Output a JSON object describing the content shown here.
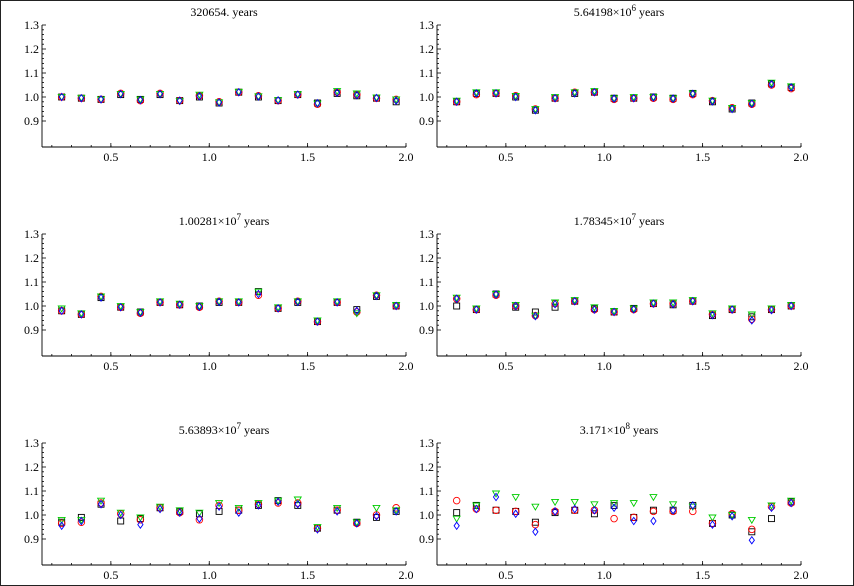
{
  "chart_data": [
    {
      "type": "scatter",
      "title": {
        "mantissa": "320654.",
        "exponent": "",
        "unit": "years"
      },
      "xlim": [
        0.15,
        2.0
      ],
      "ylim": [
        0.8,
        1.3
      ],
      "x_ticks": [
        "0.5",
        "1.0",
        "1.5",
        "2.0"
      ],
      "y_ticks": [
        "0.9",
        "1.0",
        "1.1",
        "1.2",
        "1.3"
      ],
      "x": [
        0.25,
        0.35,
        0.45,
        0.55,
        0.65,
        0.75,
        0.85,
        0.95,
        1.05,
        1.15,
        1.25,
        1.35,
        1.45,
        1.55,
        1.65,
        1.75,
        1.85,
        1.95
      ],
      "series": [
        {
          "marker": "square",
          "color": "#000000",
          "values": [
            1.0,
            0.995,
            0.99,
            1.01,
            0.99,
            1.01,
            0.985,
            1.0,
            0.975,
            1.02,
            1.0,
            0.985,
            1.01,
            0.975,
            1.015,
            1.005,
            0.995,
            0.98
          ]
        },
        {
          "marker": "circle",
          "color": "#ff0000",
          "values": [
            1.0,
            0.995,
            0.99,
            1.015,
            0.985,
            1.015,
            0.985,
            1.005,
            0.98,
            1.02,
            1.005,
            0.985,
            1.01,
            0.97,
            1.02,
            1.01,
            0.995,
            0.99
          ]
        },
        {
          "marker": "triangle-down",
          "color": "#00cc00",
          "values": [
            1.0,
            0.997,
            0.99,
            1.013,
            0.99,
            1.013,
            0.983,
            1.01,
            0.978,
            1.022,
            1.003,
            0.987,
            1.012,
            0.973,
            1.025,
            1.015,
            0.998,
            0.99
          ]
        },
        {
          "marker": "diamond",
          "color": "#0000ff",
          "values": [
            1.0,
            0.995,
            0.99,
            1.012,
            0.987,
            1.012,
            0.985,
            1.003,
            0.977,
            1.02,
            1.002,
            0.986,
            1.01,
            0.974,
            1.018,
            1.008,
            0.996,
            0.985
          ]
        }
      ]
    },
    {
      "type": "scatter",
      "title": {
        "mantissa": "5.64198",
        "exponent": "6",
        "unit": "years"
      },
      "xlim": [
        0.15,
        2.0
      ],
      "ylim": [
        0.8,
        1.3
      ],
      "x_ticks": [
        "0.5",
        "1.0",
        "1.5",
        "2.0"
      ],
      "y_ticks": [
        "0.9",
        "1.0",
        "1.1",
        "1.2",
        "1.3"
      ],
      "x": [
        0.25,
        0.35,
        0.45,
        0.55,
        0.65,
        0.75,
        0.85,
        0.95,
        1.05,
        1.15,
        1.25,
        1.35,
        1.45,
        1.55,
        1.65,
        1.75,
        1.85,
        1.95
      ],
      "series": [
        {
          "marker": "square",
          "color": "#000000",
          "values": [
            0.98,
            1.015,
            1.015,
            1.0,
            0.945,
            0.995,
            1.015,
            1.02,
            0.995,
            0.995,
            1.0,
            0.995,
            1.015,
            0.98,
            0.95,
            0.975,
            1.055,
            1.04
          ]
        },
        {
          "marker": "circle",
          "color": "#ff0000",
          "values": [
            0.98,
            1.01,
            1.015,
            1.005,
            0.95,
            0.995,
            1.02,
            1.02,
            0.99,
            0.995,
            0.995,
            0.99,
            1.01,
            0.985,
            0.955,
            0.97,
            1.05,
            1.035
          ]
        },
        {
          "marker": "triangle-down",
          "color": "#00cc00",
          "values": [
            0.985,
            1.02,
            1.02,
            1.005,
            0.95,
            1.0,
            1.02,
            1.025,
            0.995,
            1.0,
            1.0,
            0.995,
            1.015,
            0.985,
            0.955,
            0.975,
            1.06,
            1.045
          ]
        },
        {
          "marker": "diamond",
          "color": "#0000ff",
          "values": [
            0.98,
            1.015,
            1.015,
            1.0,
            0.945,
            0.995,
            1.015,
            1.02,
            0.993,
            0.995,
            0.998,
            0.993,
            1.013,
            0.982,
            0.95,
            0.972,
            1.053,
            1.04
          ]
        }
      ]
    },
    {
      "type": "scatter",
      "title": {
        "mantissa": "1.00281",
        "exponent": "7",
        "unit": "years"
      },
      "xlim": [
        0.15,
        2.0
      ],
      "ylim": [
        0.8,
        1.3
      ],
      "x_ticks": [
        "0.5",
        "1.0",
        "1.5",
        "2.0"
      ],
      "y_ticks": [
        "0.9",
        "1.0",
        "1.1",
        "1.2",
        "1.3"
      ],
      "x": [
        0.25,
        0.35,
        0.45,
        0.55,
        0.65,
        0.75,
        0.85,
        0.95,
        1.05,
        1.15,
        1.25,
        1.35,
        1.45,
        1.55,
        1.65,
        1.75,
        1.85,
        1.95
      ],
      "series": [
        {
          "marker": "square",
          "color": "#000000",
          "values": [
            0.98,
            0.965,
            1.035,
            0.995,
            0.975,
            1.015,
            1.005,
            1.0,
            1.015,
            1.015,
            1.06,
            0.99,
            1.015,
            0.935,
            1.015,
            0.985,
            1.04,
            1.0
          ]
        },
        {
          "marker": "circle",
          "color": "#ff0000",
          "values": [
            0.98,
            0.965,
            1.04,
            0.995,
            0.97,
            1.015,
            1.005,
            0.995,
            1.02,
            1.015,
            1.045,
            0.99,
            1.02,
            0.935,
            1.015,
            0.975,
            1.045,
            1.0
          ]
        },
        {
          "marker": "triangle-down",
          "color": "#00cc00",
          "values": [
            0.99,
            0.97,
            1.04,
            1.0,
            0.975,
            1.02,
            1.01,
            1.0,
            1.02,
            1.02,
            1.06,
            0.995,
            1.02,
            0.94,
            1.02,
            0.97,
            1.045,
            1.005
          ]
        },
        {
          "marker": "diamond",
          "color": "#0000ff",
          "values": [
            0.98,
            0.965,
            1.035,
            0.995,
            0.972,
            1.015,
            1.005,
            0.997,
            1.017,
            1.015,
            1.05,
            0.99,
            1.017,
            0.935,
            1.015,
            0.98,
            1.042,
            1.0
          ]
        }
      ]
    },
    {
      "type": "scatter",
      "title": {
        "mantissa": "1.78345",
        "exponent": "7",
        "unit": "years"
      },
      "xlim": [
        0.15,
        2.0
      ],
      "ylim": [
        0.8,
        1.3
      ],
      "x_ticks": [
        "0.5",
        "1.0",
        "1.5",
        "2.0"
      ],
      "y_ticks": [
        "0.9",
        "1.0",
        "1.1",
        "1.2",
        "1.3"
      ],
      "x": [
        0.25,
        0.35,
        0.45,
        0.55,
        0.65,
        0.75,
        0.85,
        0.95,
        1.05,
        1.15,
        1.25,
        1.35,
        1.45,
        1.55,
        1.65,
        1.75,
        1.85,
        1.95
      ],
      "series": [
        {
          "marker": "square",
          "color": "#000000",
          "values": [
            1.0,
            0.985,
            1.05,
            0.995,
            0.975,
            0.995,
            1.02,
            0.99,
            0.975,
            0.99,
            1.01,
            1.005,
            1.02,
            0.96,
            0.985,
            0.955,
            0.985,
            1.0
          ]
        },
        {
          "marker": "circle",
          "color": "#ff0000",
          "values": [
            1.03,
            0.985,
            1.045,
            1.0,
            0.96,
            1.01,
            1.02,
            0.985,
            0.975,
            0.985,
            1.01,
            1.01,
            1.02,
            0.965,
            0.985,
            0.945,
            0.985,
            1.0
          ]
        },
        {
          "marker": "triangle-down",
          "color": "#00cc00",
          "values": [
            1.035,
            0.99,
            1.05,
            1.005,
            0.96,
            1.015,
            1.025,
            0.995,
            0.98,
            0.99,
            1.015,
            1.015,
            1.025,
            0.97,
            0.99,
            0.965,
            0.99,
            1.005
          ]
        },
        {
          "marker": "diamond",
          "color": "#0000ff",
          "values": [
            1.03,
            0.985,
            1.048,
            1.0,
            0.958,
            1.008,
            1.02,
            0.985,
            0.975,
            0.986,
            1.01,
            1.008,
            1.02,
            0.962,
            0.985,
            0.94,
            0.983,
            1.0
          ]
        }
      ]
    },
    {
      "type": "scatter",
      "title": {
        "mantissa": "5.63893",
        "exponent": "7",
        "unit": "years"
      },
      "xlim": [
        0.15,
        2.0
      ],
      "ylim": [
        0.8,
        1.3
      ],
      "x_ticks": [
        "0.5",
        "1.0",
        "1.5",
        "2.0"
      ],
      "y_ticks": [
        "0.9",
        "1.0",
        "1.1",
        "1.2",
        "1.3"
      ],
      "x": [
        0.25,
        0.35,
        0.45,
        0.55,
        0.65,
        0.75,
        0.85,
        0.95,
        1.05,
        1.15,
        1.25,
        1.35,
        1.45,
        1.55,
        1.65,
        1.75,
        1.85,
        1.95
      ],
      "series": [
        {
          "marker": "square",
          "color": "#000000",
          "values": [
            0.97,
            0.99,
            1.045,
            0.975,
            0.985,
            1.03,
            1.015,
            1.005,
            1.015,
            1.02,
            1.04,
            1.06,
            1.04,
            0.945,
            1.02,
            0.97,
            0.99,
            1.015
          ]
        },
        {
          "marker": "circle",
          "color": "#ff0000",
          "values": [
            0.965,
            0.97,
            1.05,
            1.005,
            0.98,
            1.03,
            1.01,
            0.98,
            1.04,
            1.02,
            1.045,
            1.05,
            1.05,
            0.945,
            1.02,
            0.965,
            1.0,
            1.03
          ]
        },
        {
          "marker": "triangle-down",
          "color": "#00cc00",
          "values": [
            0.98,
            0.98,
            1.06,
            1.01,
            0.99,
            1.035,
            1.02,
            1.01,
            1.05,
            1.03,
            1.05,
            1.06,
            1.065,
            0.95,
            1.03,
            0.97,
            1.03,
            1.02
          ]
        },
        {
          "marker": "diamond",
          "color": "#0000ff",
          "values": [
            0.955,
            0.975,
            1.045,
            1.0,
            0.96,
            1.025,
            1.01,
            0.985,
            1.035,
            1.01,
            1.04,
            1.055,
            1.045,
            0.94,
            1.015,
            0.965,
            0.995,
            1.015
          ]
        }
      ]
    },
    {
      "type": "scatter",
      "title": {
        "mantissa": "3.171",
        "exponent": "8",
        "unit": "years"
      },
      "xlim": [
        0.15,
        2.0
      ],
      "ylim": [
        0.8,
        1.3
      ],
      "x_ticks": [
        "0.5",
        "1.0",
        "1.5",
        "2.0"
      ],
      "y_ticks": [
        "0.9",
        "1.0",
        "1.1",
        "1.2",
        "1.3"
      ],
      "x": [
        0.25,
        0.35,
        0.45,
        0.55,
        0.65,
        0.75,
        0.85,
        0.95,
        1.05,
        1.15,
        1.25,
        1.35,
        1.45,
        1.55,
        1.65,
        1.75,
        1.85,
        1.95
      ],
      "series": [
        {
          "marker": "square",
          "color": "#000000",
          "values": [
            1.01,
            1.04,
            1.02,
            1.015,
            0.97,
            1.01,
            1.02,
            1.005,
            1.04,
            0.99,
            1.02,
            1.02,
            1.04,
            0.965,
            1.0,
            0.93,
            0.985,
            1.055
          ]
        },
        {
          "marker": "circle",
          "color": "#ff0000",
          "values": [
            1.06,
            1.025,
            1.02,
            1.015,
            0.96,
            1.015,
            1.02,
            1.02,
            0.985,
            0.99,
            1.015,
            1.015,
            1.015,
            0.965,
            1.005,
            0.94,
            1.035,
            1.05
          ]
        },
        {
          "marker": "triangle-down",
          "color": "#00cc00",
          "values": [
            0.985,
            1.04,
            1.09,
            1.075,
            1.035,
            1.055,
            1.055,
            1.045,
            1.05,
            1.05,
            1.075,
            1.045,
            1.035,
            0.99,
            1.0,
            0.98,
            1.04,
            1.06
          ]
        },
        {
          "marker": "diamond",
          "color": "#0000ff",
          "values": [
            0.955,
            1.025,
            1.075,
            1.005,
            0.93,
            1.015,
            1.025,
            1.02,
            1.03,
            0.975,
            0.975,
            1.02,
            1.04,
            0.96,
            0.995,
            0.895,
            1.03,
            1.05
          ]
        }
      ]
    }
  ]
}
